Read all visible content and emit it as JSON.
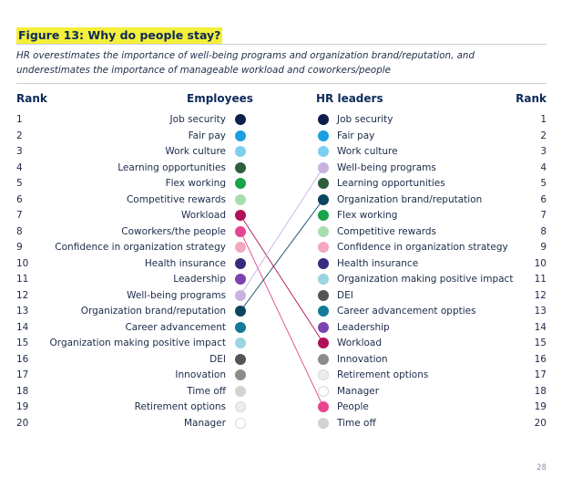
{
  "figure_title": "Figure 13: Why do people stay?",
  "subtitle": "HR overestimates the importance of well-being programs and organization brand/reputation, and underestimates the importance of manageable workload and coworkers/people",
  "headers": {
    "rank_left": "Rank",
    "employees": "Employees",
    "hr_leaders": "HR leaders",
    "rank_right": "Rank"
  },
  "ranks": [
    "1",
    "2",
    "3",
    "4",
    "5",
    "6",
    "7",
    "8",
    "9",
    "10",
    "11",
    "12",
    "13",
    "14",
    "15",
    "16",
    "17",
    "18",
    "19",
    "20"
  ],
  "employees": [
    {
      "label": "Job security",
      "color": "#0d1f4a"
    },
    {
      "label": "Fair pay",
      "color": "#1a9fe0"
    },
    {
      "label": "Work culture",
      "color": "#7dcff0"
    },
    {
      "label": "Learning opportunities",
      "color": "#2e5e3e"
    },
    {
      "label": "Flex working",
      "color": "#19a34a"
    },
    {
      "label": "Competitive rewards",
      "color": "#a8ddb0"
    },
    {
      "label": "Workload",
      "color": "#b0105a"
    },
    {
      "label": "Coworkers/the people",
      "color": "#e84590"
    },
    {
      "label": "Confidence in organization strategy",
      "color": "#f3a8c0"
    },
    {
      "label": "Health insurance",
      "color": "#3a2a7e"
    },
    {
      "label": "Leadership",
      "color": "#7b43b0"
    },
    {
      "label": "Well-being programs",
      "color": "#c9b2e0"
    },
    {
      "label": "Organization brand/reputation",
      "color": "#0b4560"
    },
    {
      "label": "Career advancement",
      "color": "#127a98"
    },
    {
      "label": "Organization making positive impact",
      "color": "#9ad4e0"
    },
    {
      "label": "DEI",
      "color": "#555555"
    },
    {
      "label": "Innovation",
      "color": "#8c8c8c"
    },
    {
      "label": "Time off",
      "color": "#d2d2d2"
    },
    {
      "label": "Retirement options",
      "color": "#ededed"
    },
    {
      "label": "Manager",
      "color": "#ffffff"
    }
  ],
  "hr_leaders": [
    {
      "label": "Job security",
      "color": "#0d1f4a"
    },
    {
      "label": "Fair pay",
      "color": "#1a9fe0"
    },
    {
      "label": "Work culture",
      "color": "#7dcff0"
    },
    {
      "label": "Well-being programs",
      "color": "#c9b2e0"
    },
    {
      "label": "Learning opportunities",
      "color": "#2e5e3e"
    },
    {
      "label": "Organization brand/reputation",
      "color": "#0b4560"
    },
    {
      "label": "Flex working",
      "color": "#19a34a"
    },
    {
      "label": "Competitive rewards",
      "color": "#a8ddb0"
    },
    {
      "label": "Confidence in organization strategy",
      "color": "#f3a8c0"
    },
    {
      "label": "Health insurance",
      "color": "#3a2a7e"
    },
    {
      "label": "Organization making positive impact",
      "color": "#9ad4e0"
    },
    {
      "label": "DEI",
      "color": "#555555"
    },
    {
      "label": "Career advancement oppties",
      "color": "#127a98"
    },
    {
      "label": "Leadership",
      "color": "#7b43b0"
    },
    {
      "label": "Workload",
      "color": "#b0105a"
    },
    {
      "label": "Innovation",
      "color": "#8c8c8c"
    },
    {
      "label": "Retirement options",
      "color": "#ededed"
    },
    {
      "label": "Manager",
      "color": "#ffffff"
    },
    {
      "label": "People",
      "color": "#e84590"
    },
    {
      "label": "Time off",
      "color": "#d2d2d2"
    }
  ],
  "connectors": [
    {
      "from_rank": 7,
      "to_rank": 15,
      "color": "#b0105a"
    },
    {
      "from_rank": 8,
      "to_rank": 19,
      "color": "#e84590"
    },
    {
      "from_rank": 12,
      "to_rank": 4,
      "color": "#c9b2e0"
    },
    {
      "from_rank": 13,
      "to_rank": 6,
      "color": "#0b4560"
    }
  ],
  "page_number": "28"
}
